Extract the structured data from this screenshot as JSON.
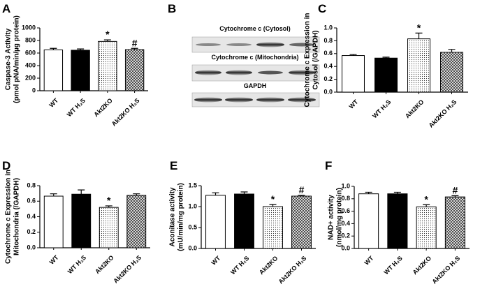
{
  "chart_data": [
    {
      "type": "bar",
      "label": "A",
      "ylabel": [
        "Caspase-3 Activity",
        "(pmol pNA/min/µg protein)"
      ],
      "categories": [
        "WT",
        "WT H₂S",
        "Akt2KO",
        "Akt2KO H₂S"
      ],
      "values": [
        650,
        645,
        785,
        655
      ],
      "errors": [
        25,
        20,
        25,
        20
      ],
      "bar_styles": [
        "white",
        "black",
        "dotted",
        "hatched"
      ],
      "ylim": [
        0,
        1000
      ],
      "yticks": [
        0,
        200,
        400,
        600,
        800,
        1000
      ],
      "annotations": [
        {
          "text": "*",
          "index": 2
        },
        {
          "text": "#",
          "index": 3
        }
      ]
    },
    {
      "type": "bar",
      "label": "C",
      "ylabel": [
        "Cytochrome c Expression in",
        "Cytosol (/GAPDH)"
      ],
      "categories": [
        "WT",
        "WT H₂S",
        "Akt2KO",
        "Akt2KO H₂S"
      ],
      "values": [
        0.57,
        0.53,
        0.83,
        0.62
      ],
      "errors": [
        0.015,
        0.015,
        0.09,
        0.045
      ],
      "bar_styles": [
        "white",
        "black",
        "dotted",
        "hatched"
      ],
      "ylim": [
        0,
        1.0
      ],
      "yticks": [
        {
          "value": 0,
          "label": "0.0"
        },
        0.2,
        0.4,
        0.6,
        0.8,
        {
          "value": 1,
          "label": "1.0"
        }
      ],
      "annotations": [
        {
          "text": "*",
          "index": 2
        }
      ]
    },
    {
      "type": "bar",
      "label": "D",
      "ylabel": [
        "Cytochrome c Expression in",
        "Mitochondria (/GAPDH)"
      ],
      "categories": [
        "WT",
        "WT H₂S",
        "Akt2KO",
        "Akt2KO H₂S"
      ],
      "values": [
        0.665,
        0.69,
        0.52,
        0.675
      ],
      "errors": [
        0.03,
        0.055,
        0.02,
        0.02
      ],
      "bar_styles": [
        "white",
        "black",
        "dotted",
        "hatched"
      ],
      "ylim": [
        0,
        0.8
      ],
      "yticks": [
        {
          "value": 0,
          "label": "0.0"
        },
        0.2,
        0.4,
        0.6,
        0.8
      ],
      "annotations": [
        {
          "text": "*",
          "index": 2
        }
      ]
    },
    {
      "type": "bar",
      "label": "E",
      "ylabel": [
        "Aconitase activity",
        "(mU/min/mg protein)"
      ],
      "categories": [
        "WT",
        "WT H₂S",
        "Akt2KO",
        "Akt2KO H₂S"
      ],
      "values": [
        1.27,
        1.3,
        1.0,
        1.25
      ],
      "errors": [
        0.06,
        0.05,
        0.05,
        0.02
      ],
      "bar_styles": [
        "white",
        "black",
        "dotted",
        "hatched"
      ],
      "ylim": [
        0,
        1.5
      ],
      "yticks": [
        {
          "value": 0,
          "label": "0.0"
        },
        0.5,
        {
          "value": 1,
          "label": "1.0"
        },
        1.5
      ],
      "annotations": [
        {
          "text": "*",
          "index": 2
        },
        {
          "text": "#",
          "index": 3
        }
      ]
    },
    {
      "type": "bar",
      "label": "F",
      "ylabel": [
        "NAD+ activity",
        "(nmol/mg protein)"
      ],
      "categories": [
        "WT",
        "WT H₂S",
        "Akt2KO",
        "Akt2KO H₂S"
      ],
      "values": [
        0.88,
        0.88,
        0.67,
        0.83
      ],
      "errors": [
        0.025,
        0.025,
        0.035,
        0.02
      ],
      "bar_styles": [
        "white",
        "black",
        "dotted",
        "hatched"
      ],
      "ylim": [
        0,
        1.0
      ],
      "yticks": [
        {
          "value": 0,
          "label": "0.0"
        },
        0.2,
        0.4,
        0.6,
        0.8,
        {
          "value": 1,
          "label": "1.0"
        }
      ],
      "annotations": [
        {
          "text": "*",
          "index": 2
        },
        {
          "text": "#",
          "index": 3
        }
      ]
    }
  ],
  "blot": {
    "label": "B",
    "rows": [
      "Cytochrome c (Cytosol)",
      "Cytochrome c (Mitochondria)",
      "GAPDH"
    ]
  }
}
